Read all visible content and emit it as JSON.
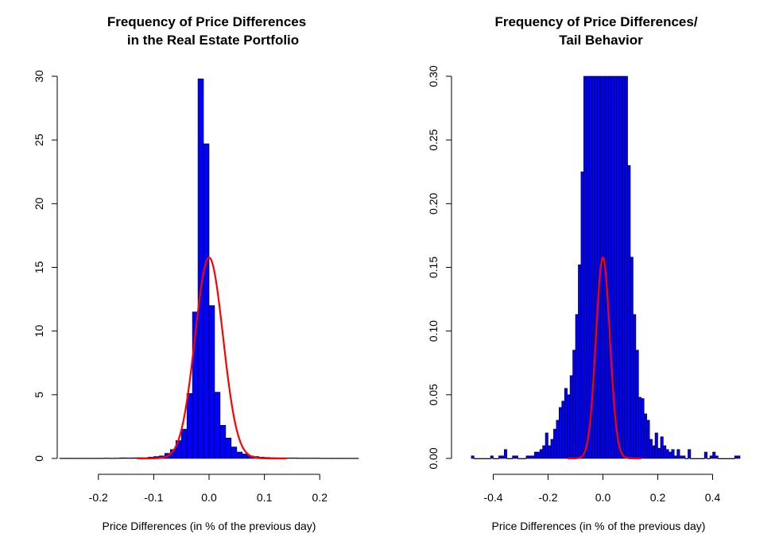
{
  "chart_data": [
    {
      "type": "histogram",
      "title_lines": [
        "Frequency of Price Differences",
        "in the Real Estate Portfolio"
      ],
      "xlabel": "Price Differences (in % of the previous day)",
      "ylabel": "",
      "xlim": [
        -0.27,
        0.27
      ],
      "ylim": [
        0,
        30
      ],
      "xticks": [
        -0.2,
        -0.1,
        0.0,
        0.1,
        0.2
      ],
      "xtick_labels": [
        "-0.2",
        "-0.1",
        "0.0",
        "0.1",
        "0.2"
      ],
      "yticks": [
        0,
        5,
        10,
        15,
        20,
        25,
        30
      ],
      "ytick_labels": [
        "0",
        "5",
        "10",
        "15",
        "20",
        "25",
        "30"
      ],
      "bin_width": 0.01,
      "bin_starts": [
        -0.27,
        -0.26,
        -0.25,
        -0.24,
        -0.23,
        -0.22,
        -0.21,
        -0.2,
        -0.19,
        -0.18,
        -0.17,
        -0.16,
        -0.15,
        -0.14,
        -0.13,
        -0.12,
        -0.11,
        -0.1,
        -0.09,
        -0.08,
        -0.07,
        -0.06,
        -0.05,
        -0.04,
        -0.03,
        -0.02,
        -0.01,
        0.0,
        0.01,
        0.02,
        0.03,
        0.04,
        0.05,
        0.06,
        0.07,
        0.08,
        0.09,
        0.1,
        0.11,
        0.12,
        0.13,
        0.14,
        0.15,
        0.16,
        0.17,
        0.18,
        0.19,
        0.2,
        0.21,
        0.22,
        0.23,
        0.24,
        0.25,
        0.26
      ],
      "values": [
        0.02,
        0.02,
        0.02,
        0.02,
        0.02,
        0.02,
        0.02,
        0.02,
        0.03,
        0.02,
        0.03,
        0.05,
        0.04,
        0.05,
        0.06,
        0.06,
        0.1,
        0.15,
        0.2,
        0.4,
        0.7,
        1.4,
        2.3,
        5.1,
        11.5,
        29.8,
        24.7,
        12.0,
        5.2,
        2.6,
        1.6,
        0.9,
        0.5,
        0.35,
        0.2,
        0.15,
        0.1,
        0.08,
        0.06,
        0.05,
        0.05,
        0.04,
        0.04,
        0.03,
        0.03,
        0.03,
        0.03,
        0.02,
        0.02,
        0.02,
        0.02,
        0.02,
        0.02,
        0.02
      ],
      "bar_color": "#0000ff",
      "curve": {
        "label": "normal density",
        "color": "#ff0000",
        "mean": 0.0,
        "sd": 0.0253,
        "x_range": [
          -0.13,
          0.14
        ]
      }
    },
    {
      "type": "histogram",
      "title_lines": [
        "Frequency of Price Differences/",
        "Tail Behavior"
      ],
      "xlabel": "Price Differences (in % of the previous day)",
      "ylabel": "",
      "xlim": [
        -0.5,
        0.5
      ],
      "ylim": [
        0,
        0.3
      ],
      "xticks": [
        -0.4,
        -0.2,
        0.0,
        0.2,
        0.4
      ],
      "xtick_labels": [
        "-0.4",
        "-0.2",
        "0.0",
        "0.2",
        "0.4"
      ],
      "yticks": [
        0,
        0.05,
        0.1,
        0.15,
        0.2,
        0.25,
        0.3
      ],
      "ytick_labels": [
        "0.00",
        "0.05",
        "0.10",
        "0.15",
        "0.20",
        "0.25",
        "0.30"
      ],
      "bin_width": 0.01,
      "bin_starts": [
        -0.48,
        -0.47,
        -0.46,
        -0.45,
        -0.44,
        -0.43,
        -0.42,
        -0.41,
        -0.4,
        -0.39,
        -0.38,
        -0.37,
        -0.36,
        -0.35,
        -0.34,
        -0.33,
        -0.32,
        -0.31,
        -0.3,
        -0.29,
        -0.28,
        -0.27,
        -0.26,
        -0.25,
        -0.24,
        -0.23,
        -0.22,
        -0.21,
        -0.2,
        -0.19,
        -0.18,
        -0.17,
        -0.16,
        -0.15,
        -0.14,
        -0.13,
        -0.12,
        -0.11,
        -0.1,
        -0.09,
        -0.08,
        -0.07,
        -0.06,
        -0.05,
        -0.04,
        -0.03,
        -0.02,
        -0.01,
        0.0,
        0.01,
        0.02,
        0.03,
        0.04,
        0.05,
        0.06,
        0.07,
        0.08,
        0.09,
        0.1,
        0.11,
        0.12,
        0.13,
        0.14,
        0.15,
        0.16,
        0.17,
        0.18,
        0.19,
        0.2,
        0.21,
        0.22,
        0.23,
        0.24,
        0.25,
        0.26,
        0.27,
        0.28,
        0.29,
        0.3,
        0.31,
        0.32,
        0.33,
        0.34,
        0.35,
        0.36,
        0.37,
        0.38,
        0.39,
        0.4,
        0.41,
        0.42,
        0.43,
        0.44,
        0.45,
        0.46,
        0.47,
        0.48,
        0.49
      ],
      "values": [
        0.002,
        0,
        0,
        0,
        0,
        0,
        0,
        0.002,
        0,
        0,
        0.002,
        0.002,
        0.007,
        0,
        0,
        0.002,
        0.002,
        0,
        0,
        0,
        0.002,
        0.002,
        0.002,
        0.005,
        0.005,
        0.007,
        0.01,
        0.02,
        0.01,
        0.015,
        0.023,
        0.03,
        0.04,
        0.045,
        0.055,
        0.05,
        0.065,
        0.085,
        0.113,
        0.152,
        0.225,
        0.3,
        0.3,
        0.3,
        0.3,
        0.3,
        0.3,
        0.3,
        0.3,
        0.3,
        0.3,
        0.3,
        0.3,
        0.3,
        0.3,
        0.3,
        0.3,
        0.23,
        0.158,
        0.113,
        0.085,
        0.048,
        0.047,
        0.035,
        0.03,
        0.015,
        0.01,
        0.02,
        0.008,
        0.017,
        0.01,
        0.007,
        0.005,
        0.007,
        0.002,
        0.007,
        0.002,
        0.002,
        0,
        0.007,
        0,
        0,
        0,
        0,
        0,
        0.005,
        0,
        0.002,
        0.005,
        0.002,
        0,
        0,
        0,
        0,
        0,
        0,
        0.002,
        0.002
      ],
      "clipped_at_ylim": true,
      "bar_color": "#0000ff",
      "curve": {
        "label": "normal density",
        "color": "#ff0000",
        "mean": 0.0,
        "sd": 0.0253,
        "x_range": [
          -0.13,
          0.14
        ]
      }
    }
  ]
}
